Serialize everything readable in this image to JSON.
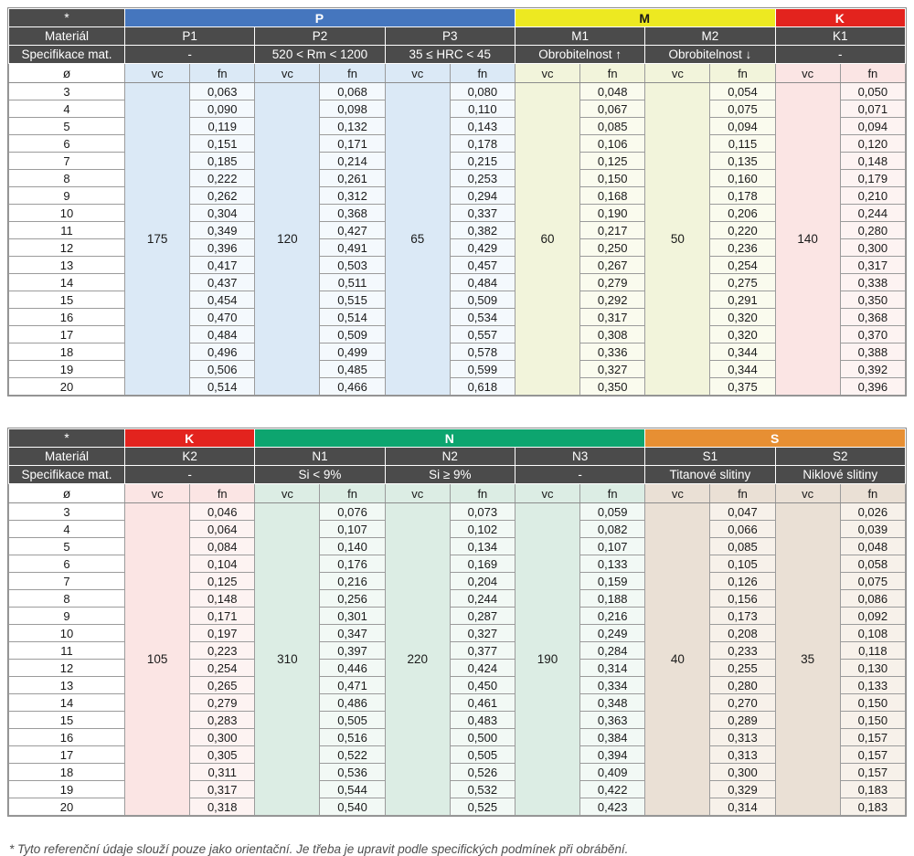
{
  "page": {
    "footnote": "* Tyto referenční údaje slouží pouze jako orientační. Je třeba je upravit podle specifických podmínek při obrábění."
  },
  "labels": {
    "star": "*",
    "material": "Materiál",
    "spec": "Specifikace mat.",
    "diameter": "ø",
    "vc": "vc",
    "fn": "fn"
  },
  "colors": {
    "header_dark_bg": "#4B4B4B",
    "header_dark_text": "#FFFFFF",
    "grid_border": "#9B9B9B"
  },
  "diameters": [
    "3",
    "4",
    "5",
    "6",
    "7",
    "8",
    "9",
    "10",
    "11",
    "12",
    "13",
    "14",
    "15",
    "16",
    "17",
    "18",
    "19",
    "20"
  ],
  "tables": [
    {
      "groups": [
        {
          "label": "P",
          "span": 3,
          "header_bg": "#4576BE",
          "header_text": "#FFFFFF",
          "vc_bg": "#DBE9F6",
          "fn_bg": "#F4F9FD"
        },
        {
          "label": "M",
          "span": 2,
          "header_bg": "#EDE921",
          "header_text": "#1A1A1A",
          "vc_bg": "#F2F4DB",
          "fn_bg": "#FAFBEE"
        },
        {
          "label": "K",
          "span": 1,
          "header_bg": "#E3231E",
          "header_text": "#FFFFFF",
          "vc_bg": "#FBE5E4",
          "fn_bg": "#FDF3F2"
        }
      ],
      "columns": [
        {
          "label": "P1",
          "group": 0,
          "spec": "-",
          "vc": "175",
          "fn": [
            "0,063",
            "0,090",
            "0,119",
            "0,151",
            "0,185",
            "0,222",
            "0,262",
            "0,304",
            "0,349",
            "0,396",
            "0,417",
            "0,437",
            "0,454",
            "0,470",
            "0,484",
            "0,496",
            "0,506",
            "0,514"
          ]
        },
        {
          "label": "P2",
          "group": 0,
          "spec": "520 < Rm < 1200",
          "vc": "120",
          "fn": [
            "0,068",
            "0,098",
            "0,132",
            "0,171",
            "0,214",
            "0,261",
            "0,312",
            "0,368",
            "0,427",
            "0,491",
            "0,503",
            "0,511",
            "0,515",
            "0,514",
            "0,509",
            "0,499",
            "0,485",
            "0,466"
          ]
        },
        {
          "label": "P3",
          "group": 0,
          "spec": "35 ≤ HRC < 45",
          "vc": "65",
          "fn": [
            "0,080",
            "0,110",
            "0,143",
            "0,178",
            "0,215",
            "0,253",
            "0,294",
            "0,337",
            "0,382",
            "0,429",
            "0,457",
            "0,484",
            "0,509",
            "0,534",
            "0,557",
            "0,578",
            "0,599",
            "0,618"
          ]
        },
        {
          "label": "M1",
          "group": 1,
          "spec": "Obrobitelnost ↑",
          "vc": "60",
          "fn": [
            "0,048",
            "0,067",
            "0,085",
            "0,106",
            "0,125",
            "0,150",
            "0,168",
            "0,190",
            "0,217",
            "0,250",
            "0,267",
            "0,279",
            "0,292",
            "0,317",
            "0,308",
            "0,336",
            "0,327",
            "0,350"
          ]
        },
        {
          "label": "M2",
          "group": 1,
          "spec": "Obrobitelnost ↓",
          "vc": "50",
          "fn": [
            "0,054",
            "0,075",
            "0,094",
            "0,115",
            "0,135",
            "0,160",
            "0,178",
            "0,206",
            "0,220",
            "0,236",
            "0,254",
            "0,275",
            "0,291",
            "0,320",
            "0,320",
            "0,344",
            "0,344",
            "0,375"
          ]
        },
        {
          "label": "K1",
          "group": 2,
          "spec": "-",
          "vc": "140",
          "fn": [
            "0,050",
            "0,071",
            "0,094",
            "0,120",
            "0,148",
            "0,179",
            "0,210",
            "0,244",
            "0,280",
            "0,300",
            "0,317",
            "0,338",
            "0,350",
            "0,368",
            "0,370",
            "0,388",
            "0,392",
            "0,396"
          ]
        }
      ]
    },
    {
      "groups": [
        {
          "label": "K",
          "span": 1,
          "header_bg": "#E3231E",
          "header_text": "#FFFFFF",
          "vc_bg": "#FBE5E4",
          "fn_bg": "#FDF3F2"
        },
        {
          "label": "N",
          "span": 3,
          "header_bg": "#0DA56F",
          "header_text": "#FFFFFF",
          "vc_bg": "#DCEDE4",
          "fn_bg": "#F2F9F5"
        },
        {
          "label": "S",
          "span": 2,
          "header_bg": "#E78F33",
          "header_text": "#FFFFFF",
          "vc_bg": "#EAE0D5",
          "fn_bg": "#F7F1EA"
        }
      ],
      "columns": [
        {
          "label": "K2",
          "group": 0,
          "spec": "-",
          "vc": "105",
          "fn": [
            "0,046",
            "0,064",
            "0,084",
            "0,104",
            "0,125",
            "0,148",
            "0,171",
            "0,197",
            "0,223",
            "0,254",
            "0,265",
            "0,279",
            "0,283",
            "0,300",
            "0,305",
            "0,311",
            "0,317",
            "0,318"
          ]
        },
        {
          "label": "N1",
          "group": 1,
          "spec": "Si < 9%",
          "vc": "310",
          "fn": [
            "0,076",
            "0,107",
            "0,140",
            "0,176",
            "0,216",
            "0,256",
            "0,301",
            "0,347",
            "0,397",
            "0,446",
            "0,471",
            "0,486",
            "0,505",
            "0,516",
            "0,522",
            "0,536",
            "0,544",
            "0,540"
          ]
        },
        {
          "label": "N2",
          "group": 1,
          "spec": "Si ≥ 9%",
          "vc": "220",
          "fn": [
            "0,073",
            "0,102",
            "0,134",
            "0,169",
            "0,204",
            "0,244",
            "0,287",
            "0,327",
            "0,377",
            "0,424",
            "0,450",
            "0,461",
            "0,483",
            "0,500",
            "0,505",
            "0,526",
            "0,532",
            "0,525"
          ]
        },
        {
          "label": "N3",
          "group": 1,
          "spec": "-",
          "vc": "190",
          "fn": [
            "0,059",
            "0,082",
            "0,107",
            "0,133",
            "0,159",
            "0,188",
            "0,216",
            "0,249",
            "0,284",
            "0,314",
            "0,334",
            "0,348",
            "0,363",
            "0,384",
            "0,394",
            "0,409",
            "0,422",
            "0,423"
          ]
        },
        {
          "label": "S1",
          "group": 2,
          "spec": "Titanové slitiny",
          "vc": "40",
          "fn": [
            "0,047",
            "0,066",
            "0,085",
            "0,105",
            "0,126",
            "0,156",
            "0,173",
            "0,208",
            "0,233",
            "0,255",
            "0,280",
            "0,270",
            "0,289",
            "0,313",
            "0,313",
            "0,300",
            "0,329",
            "0,314"
          ]
        },
        {
          "label": "S2",
          "group": 2,
          "spec": "Niklové slitiny",
          "vc": "35",
          "fn": [
            "0,026",
            "0,039",
            "0,048",
            "0,058",
            "0,075",
            "0,086",
            "0,092",
            "0,108",
            "0,118",
            "0,130",
            "0,133",
            "0,150",
            "0,150",
            "0,157",
            "0,157",
            "0,157",
            "0,183",
            "0,183"
          ]
        }
      ]
    }
  ]
}
